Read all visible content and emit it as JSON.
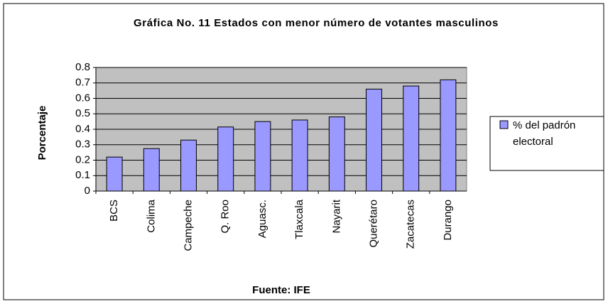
{
  "chart_data": {
    "type": "bar",
    "title": "Gráfica No. 11  Estados con  menor número de  votantes masculinos",
    "x_label": "Fuente: IFE",
    "y_label": "Porcentaje",
    "categories": [
      "BCS",
      "Colima",
      "Campeche",
      "Q. Roo",
      "Aguasc.",
      "Tlaxcala",
      "Nayarit",
      "Querétaro",
      "Zacatecas",
      "Durango"
    ],
    "series": [
      {
        "name": "% del padrón electoral",
        "color": "#9999ff",
        "values": [
          0.22,
          0.275,
          0.33,
          0.415,
          0.45,
          0.46,
          0.48,
          0.66,
          0.68,
          0.72
        ]
      }
    ],
    "ylim": [
      0,
      0.8
    ],
    "yticks": [
      0,
      0.1,
      0.2,
      0.3,
      0.4,
      0.5,
      0.6,
      0.7,
      0.8
    ],
    "grid": true,
    "legend": "right"
  }
}
